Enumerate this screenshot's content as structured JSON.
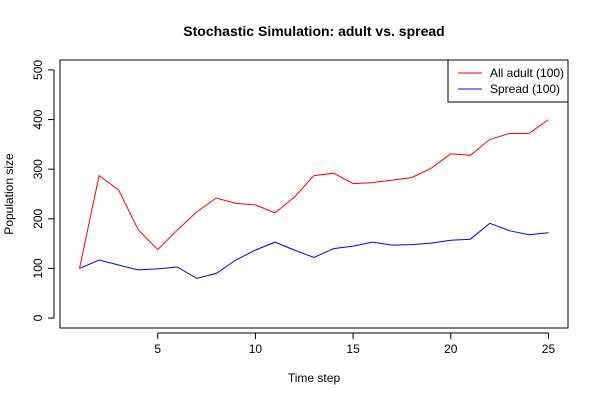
{
  "chart_data": {
    "type": "line",
    "title": "Stochastic Simulation: adult vs. spread",
    "xlabel": "Time step",
    "ylabel": "Population size",
    "xlim": [
      0,
      26
    ],
    "ylim": [
      -20,
      520
    ],
    "xticks": [
      5,
      10,
      15,
      20,
      25
    ],
    "yticks": [
      0,
      100,
      200,
      300,
      400,
      500
    ],
    "grid": false,
    "legend_position": "top-right",
    "x": [
      1,
      2,
      3,
      4,
      5,
      6,
      7,
      8,
      9,
      10,
      11,
      12,
      13,
      14,
      15,
      16,
      17,
      18,
      19,
      20,
      21,
      22,
      23,
      24,
      25
    ],
    "series": [
      {
        "name": "All adult (100)",
        "color": "#ff0000",
        "values": [
          100,
          287,
          258,
          178,
          138,
          177,
          214,
          242,
          231,
          228,
          212,
          244,
          287,
          292,
          271,
          273,
          278,
          283,
          302,
          331,
          328,
          360,
          372,
          372,
          400
        ]
      },
      {
        "name": "Spread (100)",
        "color": "#0000ff",
        "values": [
          100,
          117,
          107,
          97,
          99,
          103,
          80,
          90,
          117,
          137,
          153,
          137,
          122,
          140,
          145,
          153,
          147,
          148,
          151,
          157,
          159,
          191,
          176,
          168,
          172
        ]
      }
    ]
  }
}
